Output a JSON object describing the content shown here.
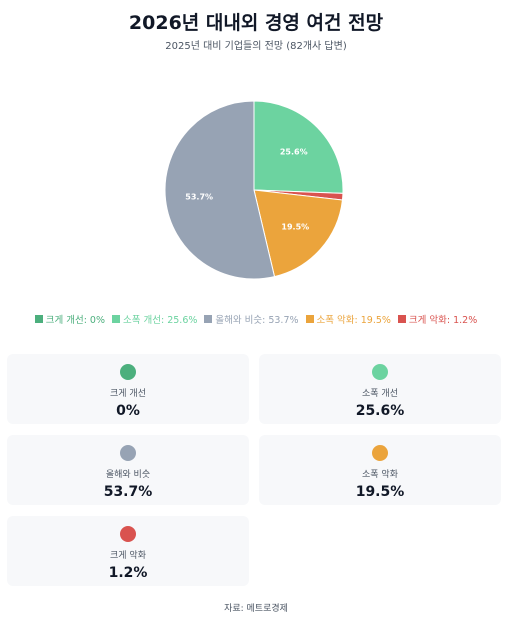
{
  "title": "2026년 대내외 경영 여건 전망",
  "subtitle": "2025년 대비 기업들의 전망 (82개사 답변)",
  "source": "자료: 메트로경제",
  "chart_data": {
    "type": "pie",
    "title": "2026년 대내외 경영 여건 전망",
    "subtitle": "2025년 대비 기업들의 전망 (82개사 답변)",
    "legend_position": "bottom",
    "slices": [
      {
        "name": "크게 개선",
        "value": 0,
        "color": "#4caf7d",
        "pie_label": "",
        "legend_label": "크게 개선: 0%",
        "card_value": "0%"
      },
      {
        "name": "소폭 개선",
        "value": 25.6,
        "color": "#6cd3a0",
        "pie_label": "25.6%",
        "legend_label": "소폭 개선: 25.6%",
        "card_value": "25.6%"
      },
      {
        "name": "크게 악화",
        "value": 1.2,
        "color": "#d9534f",
        "pie_label": "",
        "legend_label": "크게 악화: 1.2%",
        "card_value": "1.2%"
      },
      {
        "name": "소폭 악화",
        "value": 19.5,
        "color": "#eba43c",
        "pie_label": "19.5%",
        "legend_label": "소폭 악화: 19.5%",
        "card_value": "19.5%"
      },
      {
        "name": "올해와 비슷",
        "value": 53.7,
        "color": "#97a3b4",
        "pie_label": "53.7%",
        "legend_label": "올해와 비슷: 53.7%",
        "card_value": "53.7%"
      }
    ],
    "legend_order": [
      0,
      1,
      4,
      3,
      2
    ]
  },
  "cards": [
    {
      "label": "크게 개선",
      "value": "0%",
      "color": "#4caf7d"
    },
    {
      "label": "소폭 개선",
      "value": "25.6%",
      "color": "#6cd3a0"
    },
    {
      "label": "올해와 비슷",
      "value": "53.7%",
      "color": "#97a3b4"
    },
    {
      "label": "소폭 악화",
      "value": "19.5%",
      "color": "#eba43c"
    },
    {
      "label": "크게 악화",
      "value": "1.2%",
      "color": "#d9534f"
    }
  ]
}
